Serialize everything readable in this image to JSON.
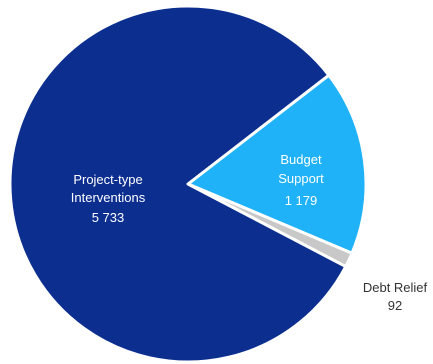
{
  "chart_data": {
    "type": "pie",
    "title": "",
    "slices": [
      {
        "name": "Project-type Interventions",
        "label_lines": [
          "Project-type",
          "Interventions"
        ],
        "value": 5733,
        "value_label": "5 733",
        "color": "#0b2e8f"
      },
      {
        "name": "Budget Support",
        "label_lines": [
          "Budget",
          "Support"
        ],
        "value": 1179,
        "value_label": "1 179",
        "color": "#20b2f8"
      },
      {
        "name": "Debt Relief",
        "label_lines": [
          "Debt Relief"
        ],
        "value": 92,
        "value_label": "92",
        "color": "#c8c8c8"
      }
    ]
  },
  "colors": {
    "separator": "#ffffff",
    "inside_label": "#ffffff",
    "outside_label": "#333333"
  }
}
